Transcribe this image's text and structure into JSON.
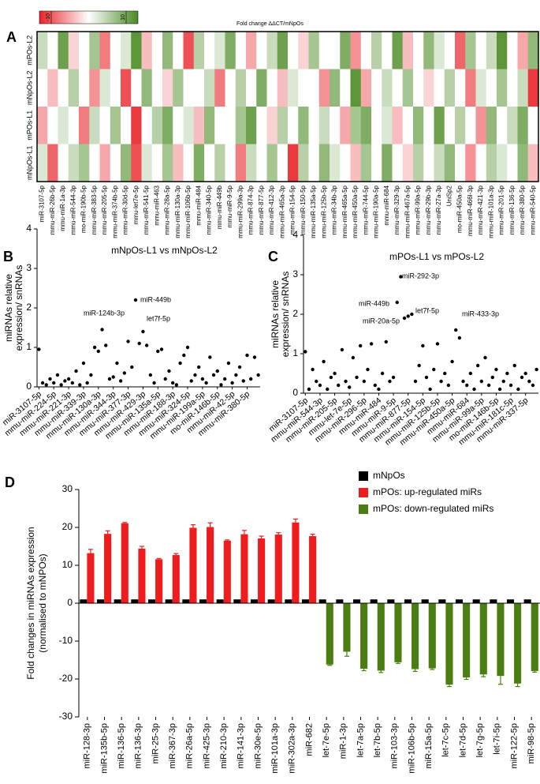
{
  "chart_data": [
    {
      "type": "heatmap",
      "label": "A",
      "colorbar_label": "Fold change ΔΔCT/mNpOs",
      "zlim": [
        -10,
        10
      ],
      "zticks": [
        -10,
        10
      ],
      "colors": [
        "#e8242a",
        "#ffffff",
        "#4a8a22"
      ],
      "y_categories": [
        "mPOs-L2",
        "mNpOs-L2",
        "mPOs-L1",
        "mNpOs-L1"
      ],
      "x_categories": [
        "miR-3107-5p",
        "mmu-miR-26b-5p",
        "mmu-miR-1a-3p",
        "mmu-miR-544-3p",
        "mo-miR-190b-5p",
        "mmu-miR-383-5p",
        "mmu-miR-205-5p",
        "mmu-miR-374b-5p",
        "mmu-miR-30d-5p",
        "mmu-let7e-5p",
        "mmu-miR-541-5p",
        "mmu-miR-463",
        "mmu-miR-28a-5p",
        "mmu-miR-130a-3p",
        "mmu-miR-106b-5p",
        "mmu-miR-484",
        "mmu-miR-340-5p",
        "mmu-miR-449b",
        "mmu-miR-9-5p",
        "mmu-miR-299a-3p",
        "mmu-miR-874-3p",
        "mmu-miR-877-5p",
        "mmu-miR-412-3p",
        "mmu-miR-465a-3p",
        "mmu-miR-154-5p",
        "mmu-miR-150-5p",
        "mmu-miR-135a-5p",
        "mmu-miR-125b-5p",
        "mmu-miR-34b-3p",
        "mmu-miR-465a-5p",
        "mmu-miR-450a-5p",
        "mmu-miR-744-5p",
        "mmu-miR-190a-5p",
        "mmu-miR-684",
        "mmu-miR-329-3p",
        "mmu-miR-467a-5p",
        "mmu-miR-99a-5p",
        "mmu-miR-29b-3p",
        "mmu-miR-27a-3p",
        "UniSp2",
        "mo-miR-450a-5p",
        "mmu-miR-466l-3p",
        "mmu-miR-421-3p",
        "mmu-miR-101a-3p",
        "mmu-miR-201-5p",
        "mmu-miR-136-5p",
        "mmu-miR-380-5p",
        "mmu-miR-540-5p"
      ],
      "values": [
        [
          3,
          0,
          8,
          -2,
          0,
          5,
          -6,
          0,
          2,
          9,
          -3,
          0,
          6,
          0,
          -8,
          4,
          0,
          2,
          7,
          0,
          -4,
          0,
          3,
          8,
          0,
          -2,
          5,
          0,
          0,
          7,
          -5,
          0,
          4,
          0,
          8,
          -3,
          0,
          6,
          2,
          0,
          -7,
          5,
          0,
          3,
          9,
          0,
          -4,
          6
        ],
        [
          0,
          -3,
          0,
          4,
          0,
          -5,
          2,
          0,
          -8,
          0,
          6,
          0,
          -2,
          5,
          0,
          0,
          3,
          -6,
          0,
          4,
          0,
          7,
          0,
          -3,
          2,
          0,
          0,
          -5,
          6,
          0,
          9,
          -4,
          0,
          3,
          0,
          5,
          0,
          -2,
          0,
          4,
          0,
          -6,
          2,
          0,
          5,
          0,
          3,
          -9
        ],
        [
          -4,
          0,
          2,
          0,
          -6,
          3,
          0,
          5,
          0,
          -9,
          0,
          4,
          7,
          0,
          2,
          -3,
          6,
          0,
          0,
          5,
          8,
          0,
          -2,
          4,
          0,
          6,
          0,
          3,
          0,
          -4,
          5,
          7,
          0,
          2,
          -3,
          0,
          6,
          0,
          8,
          0,
          4,
          0,
          -5,
          6,
          0,
          3,
          7,
          0
        ],
        [
          2,
          -7,
          0,
          3,
          5,
          0,
          -4,
          0,
          6,
          -8,
          2,
          0,
          5,
          -3,
          0,
          7,
          0,
          4,
          0,
          -6,
          3,
          0,
          5,
          0,
          -9,
          4,
          0,
          6,
          2,
          0,
          -3,
          5,
          0,
          7,
          0,
          -2,
          4,
          0,
          3,
          6,
          0,
          -5,
          0,
          4,
          2,
          0,
          6,
          -3
        ]
      ]
    },
    {
      "type": "scatter",
      "label": "B",
      "title": "mNpOs-L1 vs mNpOs-L2",
      "ylabel": [
        "miRNAs relative",
        "expression/ snRNAs"
      ],
      "ylim": [
        0,
        4
      ],
      "yticks": [
        0,
        1,
        2,
        3,
        4
      ],
      "color": "#000000",
      "categories": [
        "miR-3107-5p",
        null,
        null,
        null,
        "mmu-miR-224-5p",
        null,
        null,
        null,
        "mmu-miR-221-3p",
        null,
        null,
        null,
        "mmu-miR-339-3p",
        null,
        null,
        null,
        "mmu-miR-130a-3p",
        null,
        null,
        null,
        "mmu-miR-344-3p",
        null,
        null,
        null,
        "mmu-miR-377-3p",
        null,
        null,
        null,
        "mmu-miR-429-3p",
        null,
        null,
        null,
        "mmu-miR-135a-5p",
        null,
        null,
        null,
        "mmu-miR-188-3p",
        null,
        null,
        null,
        "mmu-miR-324-5p",
        null,
        null,
        null,
        "mmu-miR-199a-5p",
        null,
        null,
        null,
        "mo-miR-146b-5p",
        null,
        null,
        null,
        "mmu-miR-42-5p",
        null,
        null,
        null,
        "mmu-miR-380-5p",
        null,
        null,
        null
      ],
      "values": [
        0.95,
        0.1,
        0.05,
        0.2,
        0.1,
        0.3,
        0.05,
        0.15,
        0.2,
        0.1,
        0.4,
        0.05,
        0.6,
        0.1,
        0.3,
        1.0,
        0.9,
        1.45,
        1.05,
        0.2,
        0.25,
        0.6,
        0.15,
        0.35,
        1.15,
        0.5,
        2.2,
        1.1,
        1.4,
        1.05,
        0.3,
        0.1,
        0.9,
        0.95,
        0.2,
        0.4,
        0.1,
        0.05,
        0.6,
        0.8,
        1.0,
        0.15,
        0.3,
        0.5,
        0.2,
        0.1,
        0.75,
        0.3,
        0.4,
        0.05,
        0.2,
        0.6,
        0.1,
        0.3,
        0.5,
        0.15,
        0.8,
        0.2,
        0.75,
        0.3
      ],
      "annotations": [
        "miR-124b-3p",
        "miR-449b",
        "let7f-5p"
      ]
    },
    {
      "type": "scatter",
      "label": "C",
      "title": "mPOs-L1 vs mPOs-L2",
      "ylabel": [
        "miRNAs relative",
        "expression/ snRNAs"
      ],
      "ylim": [
        0,
        4
      ],
      "yticks": [
        0,
        1,
        2,
        3,
        4
      ],
      "color": "#000000",
      "categories": [
        "miR-3107-5p",
        null,
        null,
        null,
        "mmu-miR-544-3p",
        null,
        null,
        null,
        "mmu-miR-205-5p",
        null,
        null,
        null,
        "mmu-let-7e-5p",
        null,
        null,
        null,
        "mmu-miR-296-5p",
        null,
        null,
        null,
        "mmu-miR-484",
        null,
        null,
        null,
        "mmu-miR-9-5p",
        null,
        null,
        null,
        "mmu-miR-877-5p",
        null,
        null,
        null,
        "mmu-miR-154-5p",
        null,
        null,
        null,
        "mmu-miR-125b-5p",
        null,
        null,
        null,
        "mmu-miR-450a-5p",
        null,
        null,
        null,
        "mmu-miR-684",
        null,
        null,
        null,
        "mmu-miR-99a-5p",
        null,
        null,
        null,
        "mo-miR-146b-5p",
        null,
        null,
        null,
        "mmu-miR-181c-5p",
        null,
        null,
        null,
        "mmu-miR-337-5p",
        null,
        null,
        null
      ],
      "values": [
        1.05,
        0.1,
        0.6,
        0.3,
        0.2,
        0.8,
        0.1,
        0.4,
        0.5,
        0.2,
        1.1,
        0.3,
        0.15,
        0.9,
        0.4,
        1.2,
        0.3,
        0.6,
        1.25,
        0.2,
        0.1,
        0.5,
        1.3,
        0.3,
        0.4,
        2.3,
        2.95,
        1.9,
        1.95,
        2.0,
        0.3,
        0.7,
        1.2,
        0.4,
        0.1,
        0.6,
        1.25,
        0.3,
        0.5,
        0.2,
        0.8,
        1.6,
        1.4,
        0.3,
        0.2,
        0.5,
        0.1,
        0.7,
        0.3,
        0.9,
        0.2,
        0.4,
        0.6,
        0.1,
        0.3,
        0.5,
        0.2,
        0.7,
        0.1,
        0.4,
        0.5,
        0.3,
        0.2,
        0.6
      ],
      "annotations": [
        "miR-292-3p",
        "miR-449b",
        "miR-20a-5p",
        "let7f-5p",
        "miR-433-3p"
      ]
    },
    {
      "type": "bar",
      "label": "D",
      "ylabel": [
        "Fold changes in miRNAs expression",
        "(normalised to mNPOs)"
      ],
      "ylim": [
        -30,
        30
      ],
      "yticks": [
        -30,
        -20,
        -10,
        0,
        10,
        20,
        30
      ],
      "legend": "top-right",
      "categories": [
        "miR-128-3p",
        "miR-135b-5p",
        "miR-136-5p",
        "miR-136-3p",
        "miR-25-3p",
        "miR-367-3p",
        "miR-26a-5p",
        "miR-425-3p",
        "miR-210-3p",
        "miR-141-3p",
        "miR-30e-5p",
        "miR-101a-3p",
        "miR-302a-3p",
        "miR-682",
        "let-7e-5p",
        "miR-1-3p",
        "let-7a-5p",
        "let-7b-5p",
        "miR-103-3p",
        "miR-106b-5p",
        "miR-15a-5p",
        "let-7c-5p",
        "let-7d-5p",
        "let-7g-5p",
        "let-7i-5p",
        "miR-122-5p",
        "miR-98-5p"
      ],
      "series": [
        {
          "name": "mNpOs",
          "color": "#000000",
          "values": [
            1,
            1,
            1,
            1,
            1,
            1,
            1,
            1,
            1,
            1,
            1,
            1,
            1,
            1,
            1,
            1,
            1,
            1,
            1,
            1,
            1,
            1,
            1,
            1,
            1,
            1,
            1
          ]
        },
        {
          "name": "mPOs: up-regulated  miRs",
          "color": "#ee1c1c",
          "values": [
            13.2,
            18.3,
            21.1,
            14.4,
            11.6,
            12.7,
            19.9,
            20.1,
            16.5,
            18.2,
            17.1,
            18.1,
            21.3,
            17.7,
            null,
            null,
            null,
            null,
            null,
            null,
            null,
            null,
            null,
            null,
            null,
            null,
            null
          ],
          "errors": [
            1.0,
            0.8,
            0.2,
            0.6,
            0.2,
            0.4,
            0.8,
            1.1,
            0.2,
            1.0,
            0.6,
            0.5,
            0.9,
            0.5,
            null,
            null,
            null,
            null,
            null,
            null,
            null,
            null,
            null,
            null,
            null,
            null,
            null
          ]
        },
        {
          "name": "mPOs: down-regulated  miRs",
          "color": "#4a7d12",
          "values": [
            null,
            null,
            null,
            null,
            null,
            null,
            null,
            null,
            null,
            null,
            null,
            null,
            null,
            null,
            -16.2,
            -12.8,
            -17.3,
            -17.8,
            -15.6,
            -17.4,
            -17.2,
            -21.5,
            -19.6,
            -18.8,
            -19.2,
            -21.2,
            -17.9
          ],
          "errors": [
            null,
            null,
            null,
            null,
            null,
            null,
            null,
            null,
            null,
            null,
            null,
            null,
            null,
            null,
            0.2,
            1.2,
            0.5,
            0.5,
            0.3,
            0.6,
            0.3,
            0.5,
            0.5,
            0.6,
            2.2,
            0.8,
            0.3
          ]
        }
      ]
    }
  ]
}
